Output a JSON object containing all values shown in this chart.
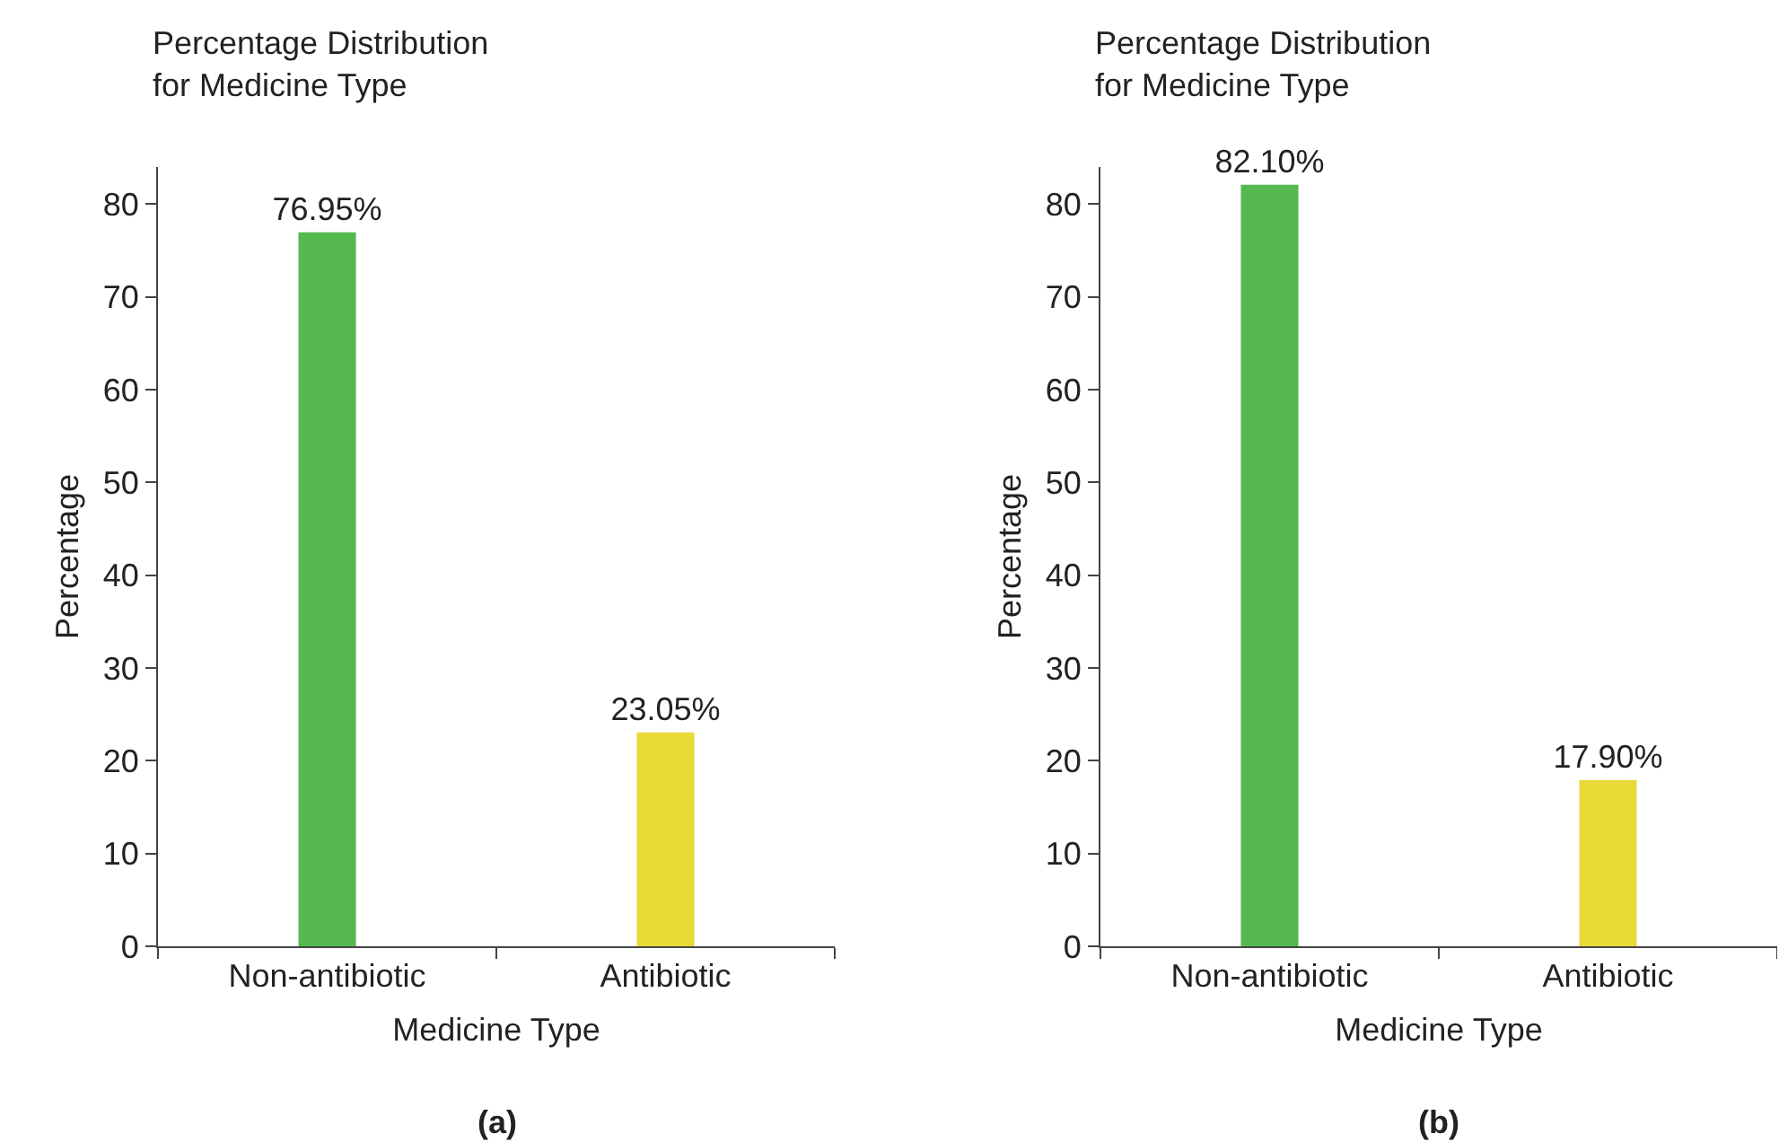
{
  "chart_data": [
    {
      "type": "bar",
      "title": "Percentage Distribution\nfor Medicine Type",
      "xlabel": "Medicine Type",
      "ylabel": "Percentage",
      "categories": [
        "Non-antibiotic",
        "Antibiotic"
      ],
      "values": [
        76.95,
        23.05
      ],
      "colors": [
        "#55b94f",
        "#e8d936"
      ],
      "value_labels": [
        "76.95%",
        "23.05%"
      ],
      "ylim": [
        0,
        84
      ],
      "yticks": [
        0,
        10,
        20,
        30,
        40,
        50,
        60,
        70,
        80
      ],
      "grid": false,
      "annotations": [
        "(a)"
      ]
    },
    {
      "type": "bar",
      "title": "Percentage Distribution\nfor Medicine Type",
      "xlabel": "Medicine Type",
      "ylabel": "Percentage",
      "categories": [
        "Non-antibiotic",
        "Antibiotic"
      ],
      "values": [
        82.1,
        17.9
      ],
      "colors": [
        "#55b94f",
        "#e8d936"
      ],
      "value_labels": [
        "82.10%",
        "17.90%"
      ],
      "ylim": [
        0,
        84
      ],
      "yticks": [
        0,
        10,
        20,
        30,
        40,
        50,
        60,
        70,
        80
      ],
      "grid": false,
      "annotations": [
        "(b)"
      ]
    }
  ]
}
